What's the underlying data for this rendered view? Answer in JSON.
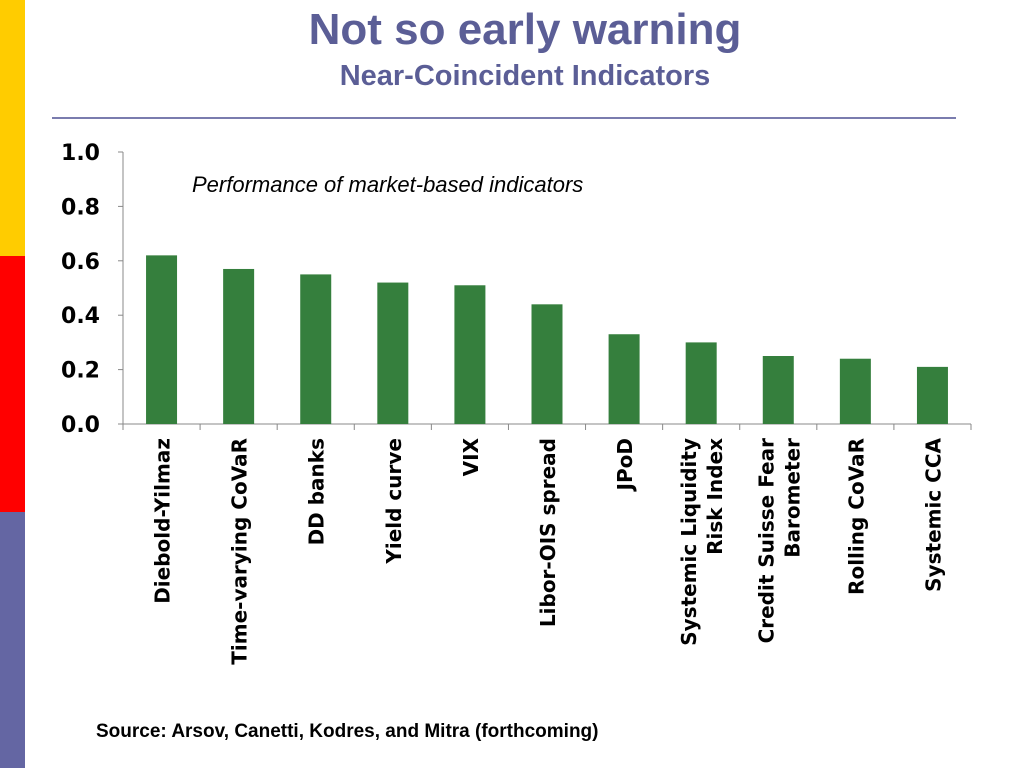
{
  "slide": {
    "title": "Not so early warning",
    "subtitle": "Near-Coincident Indicators",
    "source": "Source: Arsov, Canetti, Kodres, and Mitra (forthcoming)"
  },
  "colors": {
    "accent_yellow": "#ffcc00",
    "accent_red": "#ff0000",
    "accent_blue": "#6466a3",
    "title": "#5b5e96",
    "bar": "#357f3d"
  },
  "chart_data": {
    "type": "bar",
    "annotation": "Performance of market-based indicators",
    "categories": [
      [
        "Diebold-Yilmaz"
      ],
      [
        "Time-varying CoVaR"
      ],
      [
        "DD banks"
      ],
      [
        "Yield curve"
      ],
      [
        "VIX"
      ],
      [
        "Libor-OIS spread"
      ],
      [
        "JPoD"
      ],
      [
        "Systemic Liquidity",
        "Risk Index"
      ],
      [
        "Credit Suisse Fear",
        "Barometer"
      ],
      [
        "Rolling CoVaR"
      ],
      [
        "Systemic CCA"
      ]
    ],
    "values": [
      0.62,
      0.57,
      0.55,
      0.52,
      0.51,
      0.44,
      0.33,
      0.3,
      0.25,
      0.24,
      0.21
    ],
    "ylim": [
      0,
      1.0
    ],
    "yticks": [
      "0.0",
      "0.2",
      "0.4",
      "0.6",
      "0.8",
      "1.0"
    ],
    "grid": false,
    "legend": "none"
  }
}
